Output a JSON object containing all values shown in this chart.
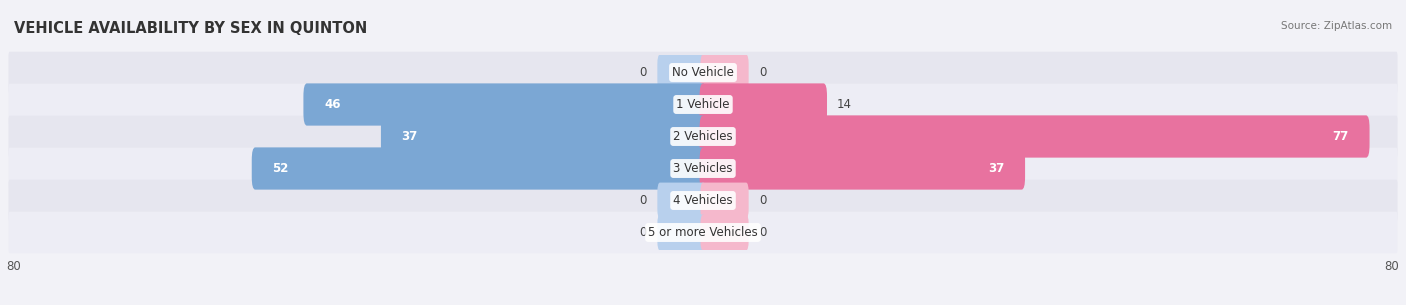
{
  "title": "VEHICLE AVAILABILITY BY SEX IN QUINTON",
  "source": "Source: ZipAtlas.com",
  "categories": [
    "No Vehicle",
    "1 Vehicle",
    "2 Vehicles",
    "3 Vehicles",
    "4 Vehicles",
    "5 or more Vehicles"
  ],
  "male_values": [
    0,
    46,
    37,
    52,
    0,
    0
  ],
  "female_values": [
    0,
    14,
    77,
    37,
    0,
    0
  ],
  "male_color": "#7ba7d4",
  "female_color": "#e8729f",
  "male_light_color": "#b8d0ed",
  "female_light_color": "#f5b8cc",
  "bar_height": 0.52,
  "xlim": 80,
  "background_color": "#f2f2f7",
  "row_color_dark": "#e6e6ef",
  "row_color_light": "#ededf5",
  "title_fontsize": 10.5,
  "label_fontsize": 8.5,
  "tick_fontsize": 8.5,
  "zero_stub": 5
}
